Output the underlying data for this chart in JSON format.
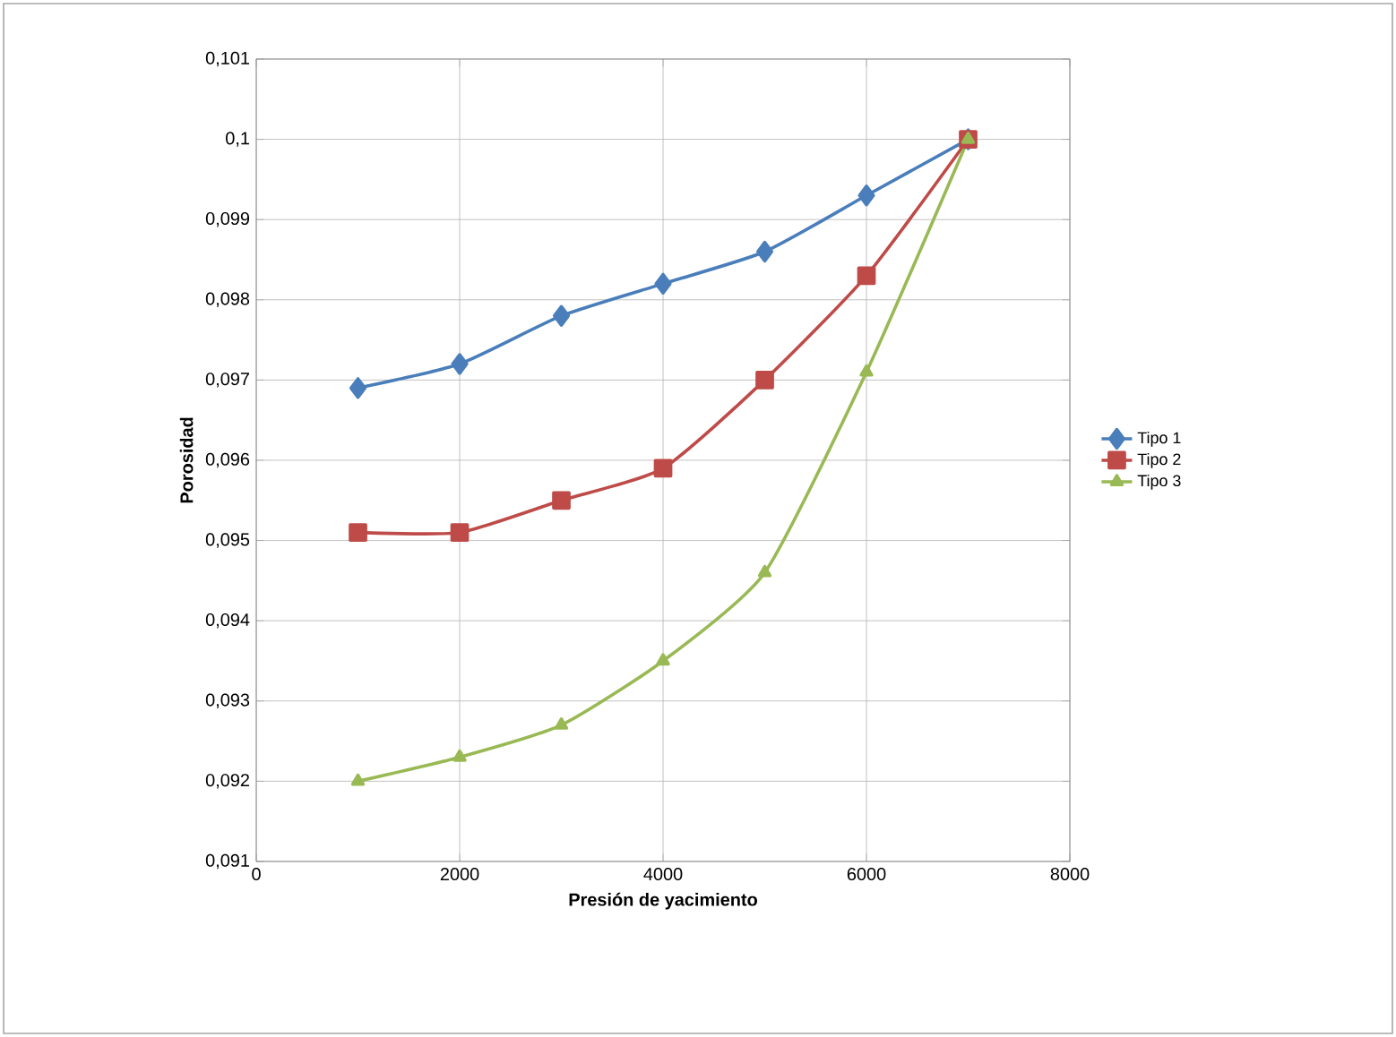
{
  "chart_data": {
    "type": "line",
    "xlabel": "Presión de yacimiento",
    "ylabel": "Porosidad",
    "x": [
      1000,
      2000,
      3000,
      4000,
      5000,
      6000,
      7000
    ],
    "series": [
      {
        "name": "Tipo 1",
        "color": "#4a7ebb",
        "marker": "diamond",
        "values": [
          0.0969,
          0.0972,
          0.0978,
          0.0982,
          0.0986,
          0.0993,
          0.1
        ]
      },
      {
        "name": "Tipo 2",
        "color": "#be4b48",
        "marker": "square",
        "values": [
          0.0951,
          0.0951,
          0.0955,
          0.0959,
          0.097,
          0.0983,
          0.1
        ]
      },
      {
        "name": "Tipo 3",
        "color": "#98b954",
        "marker": "triangle",
        "values": [
          0.092,
          0.0923,
          0.0927,
          0.0935,
          0.0946,
          0.0971,
          0.1
        ]
      }
    ],
    "xlim": [
      0,
      8000
    ],
    "xticks": [
      0,
      2000,
      4000,
      6000,
      8000
    ],
    "ylim": [
      0.091,
      0.101
    ],
    "yticks": [
      {
        "value": 0.091,
        "label": "0,091"
      },
      {
        "value": 0.092,
        "label": "0,092"
      },
      {
        "value": 0.093,
        "label": "0,093"
      },
      {
        "value": 0.094,
        "label": "0,094"
      },
      {
        "value": 0.095,
        "label": "0,095"
      },
      {
        "value": 0.096,
        "label": "0,096"
      },
      {
        "value": 0.097,
        "label": "0,097"
      },
      {
        "value": 0.098,
        "label": "0,098"
      },
      {
        "value": 0.099,
        "label": "0,099"
      },
      {
        "value": 0.1,
        "label": "0,1"
      },
      {
        "value": 0.101,
        "label": "0,101"
      }
    ],
    "grid": true,
    "legend": "right",
    "line_style": "solid"
  }
}
